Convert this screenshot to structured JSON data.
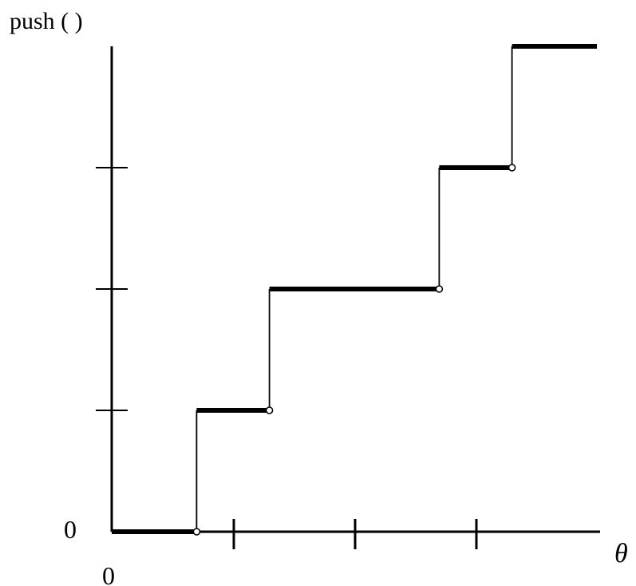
{
  "chart_data": {
    "type": "line",
    "step": true,
    "ylabel": "push ( )",
    "xlabel": "θ",
    "x_origin_label": "0",
    "y_origin_label": "0",
    "xlim": [
      0,
      4
    ],
    "ylim": [
      0,
      4
    ],
    "x_ticks": [
      1,
      2,
      3
    ],
    "y_ticks": [
      1,
      2,
      3
    ],
    "grid": false,
    "legend": "none",
    "segments": [
      {
        "x0": 0,
        "x1": 0.7,
        "y": 0
      },
      {
        "x0": 0.7,
        "x1": 1.3,
        "y": 1
      },
      {
        "x0": 1.3,
        "x1": 2.7,
        "y": 2
      },
      {
        "x0": 2.7,
        "x1": 3.3,
        "y": 3
      },
      {
        "x0": 3.3,
        "x1": 4.0,
        "y": 4
      }
    ]
  }
}
